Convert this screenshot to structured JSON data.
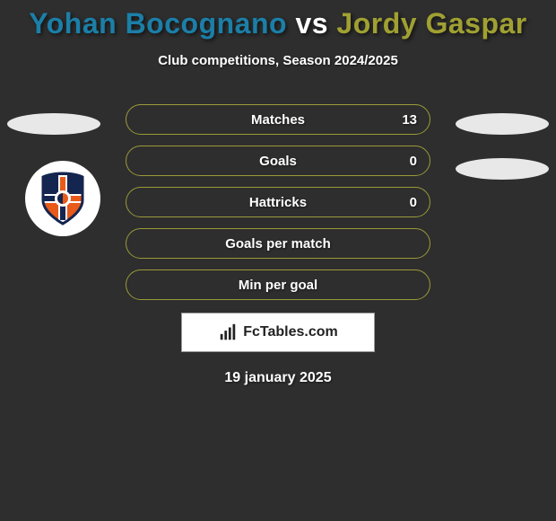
{
  "title": {
    "player1": "Yohan Bocognano",
    "vs": "vs",
    "player2": "Jordy Gaspar",
    "color_player1": "#1b7fa8",
    "color_vs": "#ffffff",
    "color_player2": "#a0a033"
  },
  "subtitle": "Club competitions, Season 2024/2025",
  "stats": {
    "row_border_color": "#9a9a3a",
    "row_bg": "transparent",
    "rows": [
      {
        "label": "Matches",
        "left": "",
        "right": "13"
      },
      {
        "label": "Goals",
        "left": "",
        "right": "0"
      },
      {
        "label": "Hattricks",
        "left": "",
        "right": "0"
      },
      {
        "label": "Goals per match",
        "left": "",
        "right": ""
      },
      {
        "label": "Min per goal",
        "left": "",
        "right": ""
      }
    ]
  },
  "logo": {
    "bg": "#ffffff",
    "shield_stroke": "#14254f",
    "shield_fill_top": "#14254f",
    "shield_fill_bottom": "#e85a1a",
    "cross": "#ffffff"
  },
  "watermark": "FcTables.com",
  "date": "19 january 2025",
  "colors": {
    "page_bg": "#2e2e2e",
    "ellipse": "#e8e8e8"
  }
}
